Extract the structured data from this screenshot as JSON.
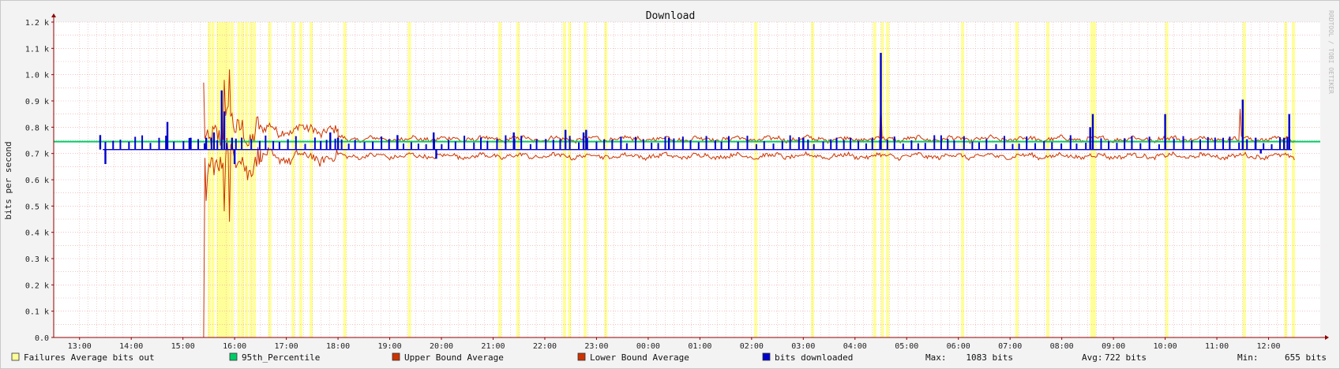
{
  "chart_data": {
    "type": "line",
    "title": "Download",
    "ylabel": "bits per second",
    "xlabel": "",
    "watermark": "RRDTOOL / TOBI OETIKER",
    "ylim": [
      0,
      1200
    ],
    "y_ticks": [
      {
        "value": 0,
        "label": "0.0"
      },
      {
        "value": 100,
        "label": "0.1 k"
      },
      {
        "value": 200,
        "label": "0.2 k"
      },
      {
        "value": 300,
        "label": "0.3 k"
      },
      {
        "value": 400,
        "label": "0.4 k"
      },
      {
        "value": 500,
        "label": "0.5 k"
      },
      {
        "value": 600,
        "label": "0.6 k"
      },
      {
        "value": 700,
        "label": "0.7 k"
      },
      {
        "value": 800,
        "label": "0.8 k"
      },
      {
        "value": 900,
        "label": "0.9 k"
      },
      {
        "value": 1000,
        "label": "1.0 k"
      },
      {
        "value": 1100,
        "label": "1.1 k"
      },
      {
        "value": 1200,
        "label": "1.2 k"
      }
    ],
    "x_range_hours": [
      12.5,
      13.0
    ],
    "x_ticks": [
      {
        "value": 13,
        "label": "13:00"
      },
      {
        "value": 14,
        "label": "14:00"
      },
      {
        "value": 15,
        "label": "15:00"
      },
      {
        "value": 16,
        "label": "16:00"
      },
      {
        "value": 17,
        "label": "17:00"
      },
      {
        "value": 18,
        "label": "18:00"
      },
      {
        "value": 19,
        "label": "19:00"
      },
      {
        "value": 20,
        "label": "20:00"
      },
      {
        "value": 21,
        "label": "21:00"
      },
      {
        "value": 22,
        "label": "22:00"
      },
      {
        "value": 23,
        "label": "23:00"
      },
      {
        "value": 24,
        "label": "00:00"
      },
      {
        "value": 25,
        "label": "01:00"
      },
      {
        "value": 26,
        "label": "02:00"
      },
      {
        "value": 27,
        "label": "03:00"
      },
      {
        "value": 28,
        "label": "04:00"
      },
      {
        "value": 29,
        "label": "05:00"
      },
      {
        "value": 30,
        "label": "06:00"
      },
      {
        "value": 31,
        "label": "07:00"
      },
      {
        "value": 32,
        "label": "08:00"
      },
      {
        "value": 33,
        "label": "09:00"
      },
      {
        "value": 34,
        "label": "10:00"
      },
      {
        "value": 35,
        "label": "11:00"
      },
      {
        "value": 36,
        "label": "12:00"
      }
    ],
    "grid": true,
    "colors": {
      "background": "#ffffff",
      "failures": "#ffff99",
      "percentile": "#00cc66",
      "upper": "#cc3300",
      "lower": "#cc3300",
      "bits": "#0000cc",
      "grid": "#e8a0a0"
    },
    "series": [
      {
        "name": "Failures Average bits out",
        "type": "bands",
        "hours": [
          15.48,
          15.55,
          15.65,
          15.7,
          15.75,
          15.8,
          15.85,
          15.92,
          16.05,
          16.12,
          16.2,
          16.28,
          16.35,
          16.65,
          17.1,
          17.25,
          17.45,
          18.1,
          19.35,
          21.1,
          21.45,
          22.35,
          22.45,
          22.75,
          23.15,
          26.05,
          27.15,
          28.35,
          28.5,
          28.6,
          30.05,
          31.1,
          31.7,
          32.55,
          32.6,
          34.0,
          35.5,
          36.3,
          36.45
        ]
      },
      {
        "name": "95th_Percentile",
        "type": "hline",
        "value": 745
      },
      {
        "name": "Upper Bound Average",
        "type": "line",
        "segments": [
          {
            "from": 15.4,
            "to": 16.5,
            "mean": 790,
            "amplitude": 130
          },
          {
            "from": 16.5,
            "to": 18.0,
            "mean": 790,
            "amplitude": 45
          },
          {
            "from": 18.0,
            "to": 36.5,
            "mean": 755,
            "amplitude": 20
          }
        ],
        "spikes": [
          [
            15.4,
            970
          ],
          [
            15.8,
            980
          ],
          [
            15.9,
            1020
          ],
          [
            28.5,
            900
          ],
          [
            35.45,
            870
          ]
        ]
      },
      {
        "name": "Lower Bound Average",
        "type": "line",
        "segments": [
          {
            "from": 15.4,
            "to": 16.5,
            "mean": 680,
            "amplitude": 130
          },
          {
            "from": 16.5,
            "to": 18.0,
            "mean": 685,
            "amplitude": 45
          },
          {
            "from": 18.0,
            "to": 36.5,
            "mean": 690,
            "amplitude": 20
          }
        ],
        "spikes": [
          [
            15.4,
            0
          ],
          [
            15.45,
            520
          ],
          [
            15.8,
            480
          ],
          [
            15.9,
            440
          ]
        ]
      },
      {
        "name": "bits downloaded",
        "type": "bars",
        "baseline": 715,
        "spikes": [
          [
            13.4,
            770
          ],
          [
            13.5,
            660
          ],
          [
            14.7,
            820
          ],
          [
            15.15,
            760
          ],
          [
            15.45,
            760
          ],
          [
            15.6,
            780
          ],
          [
            15.75,
            940
          ],
          [
            15.8,
            860
          ],
          [
            15.95,
            760
          ],
          [
            16.0,
            660
          ],
          [
            17.85,
            780
          ],
          [
            18.0,
            760
          ],
          [
            19.15,
            770
          ],
          [
            19.85,
            780
          ],
          [
            19.9,
            680
          ],
          [
            21.4,
            780
          ],
          [
            22.4,
            790
          ],
          [
            22.75,
            780
          ],
          [
            22.8,
            790
          ],
          [
            24.4,
            760
          ],
          [
            27.0,
            760
          ],
          [
            28.5,
            1083
          ],
          [
            32.55,
            800
          ],
          [
            32.6,
            850
          ],
          [
            34.0,
            850
          ],
          [
            35.5,
            905
          ],
          [
            35.75,
            760
          ],
          [
            35.85,
            700
          ],
          [
            36.3,
            760
          ],
          [
            36.4,
            850
          ]
        ]
      }
    ],
    "legend": [
      {
        "label": "Failures Average bits out",
        "color": "#ffff99"
      },
      {
        "label": "95th_Percentile",
        "color": "#00cc66"
      },
      {
        "label": "Upper Bound Average",
        "color": "#cc3300"
      },
      {
        "label": "Lower Bound Average",
        "color": "#cc3300"
      },
      {
        "label": "bits downloaded",
        "color": "#0000cc"
      }
    ],
    "stats": [
      {
        "label": "Max:",
        "value": "1083 bits"
      },
      {
        "label": "Avg:",
        "value": "722 bits"
      },
      {
        "label": "Min:",
        "value": "655 bits"
      }
    ]
  }
}
